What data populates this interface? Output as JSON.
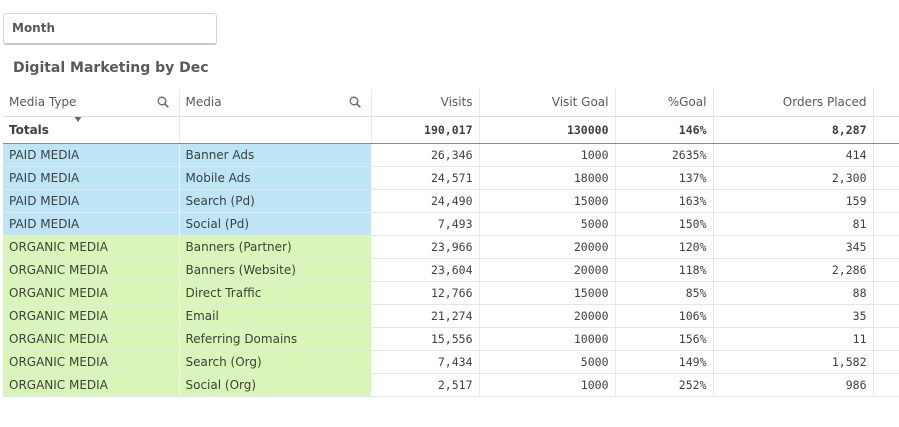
{
  "filter": {
    "label": "Month"
  },
  "title": "Digital Marketing by Dec",
  "columns": [
    "Media Type",
    "Media",
    "Visits",
    "Visit Goal",
    "%Goal",
    "Orders Placed"
  ],
  "totals": {
    "label": "Totals",
    "visits": "190,017",
    "visit_goal": "130000",
    "pct_goal": "146%",
    "orders": "8,287"
  },
  "rows": [
    {
      "type": "PAID MEDIA",
      "media": "Banner Ads",
      "visits": "26,346",
      "visit_goal": "1000",
      "pct_goal": "2635%",
      "orders": "414"
    },
    {
      "type": "PAID MEDIA",
      "media": "Mobile Ads",
      "visits": "24,571",
      "visit_goal": "18000",
      "pct_goal": "137%",
      "orders": "2,300"
    },
    {
      "type": "PAID MEDIA",
      "media": "Search (Pd)",
      "visits": "24,490",
      "visit_goal": "15000",
      "pct_goal": "163%",
      "orders": "159"
    },
    {
      "type": "PAID MEDIA",
      "media": "Social (Pd)",
      "visits": "7,493",
      "visit_goal": "5000",
      "pct_goal": "150%",
      "orders": "81"
    },
    {
      "type": "ORGANIC MEDIA",
      "media": "Banners (Partner)",
      "visits": "23,966",
      "visit_goal": "20000",
      "pct_goal": "120%",
      "orders": "345"
    },
    {
      "type": "ORGANIC MEDIA",
      "media": "Banners (Website)",
      "visits": "23,604",
      "visit_goal": "20000",
      "pct_goal": "118%",
      "orders": "2,286"
    },
    {
      "type": "ORGANIC MEDIA",
      "media": "Direct Traffic",
      "visits": "12,766",
      "visit_goal": "15000",
      "pct_goal": "85%",
      "orders": "88"
    },
    {
      "type": "ORGANIC MEDIA",
      "media": "Email",
      "visits": "21,274",
      "visit_goal": "20000",
      "pct_goal": "106%",
      "orders": "35"
    },
    {
      "type": "ORGANIC MEDIA",
      "media": "Referring Domains",
      "visits": "15,556",
      "visit_goal": "10000",
      "pct_goal": "156%",
      "orders": "11"
    },
    {
      "type": "ORGANIC MEDIA",
      "media": "Search (Org)",
      "visits": "7,434",
      "visit_goal": "5000",
      "pct_goal": "149%",
      "orders": "1,582"
    },
    {
      "type": "ORGANIC MEDIA",
      "media": "Social (Org)",
      "visits": "2,517",
      "visit_goal": "1000",
      "pct_goal": "252%",
      "orders": "986"
    }
  ],
  "colors": {
    "paid": "#bde5f5",
    "organic": "#d9f5b7"
  },
  "icons": {
    "search": "search-icon",
    "sort": "sort-descending-icon"
  }
}
